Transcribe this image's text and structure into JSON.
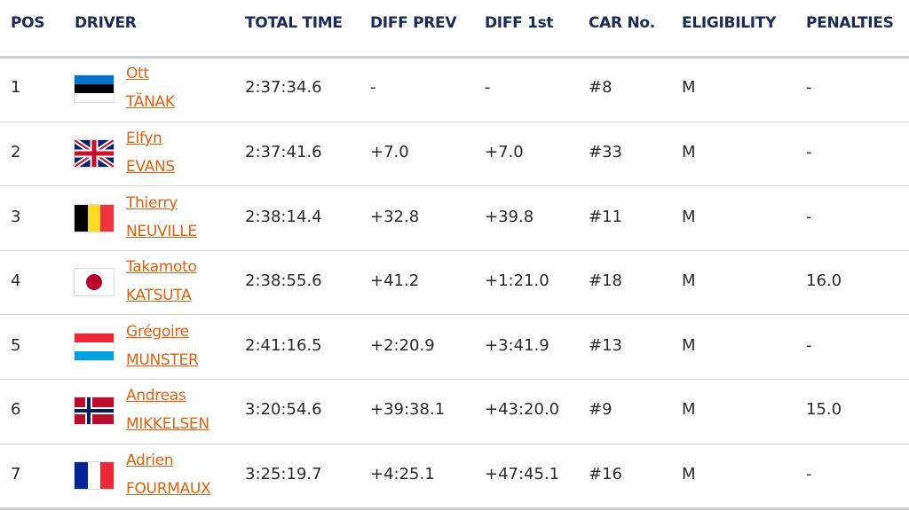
{
  "table": {
    "header": [
      "POS",
      "DRIVER",
      "TOTAL TIME",
      "DIFF PREV",
      "DIFF 1st",
      "CAR No.",
      "ELIGIBILITY",
      "PENALTIES"
    ],
    "rows": [
      {
        "pos": 1,
        "first_name": "Ott",
        "last_name": "TÄNAK",
        "total_time": "2:37:34.6",
        "diff_prev": "-",
        "diff_first": "-",
        "car": "#8",
        "eligibility": "M",
        "penalties": "-"
      },
      {
        "pos": 2,
        "first_name": "Elfyn",
        "last_name": "EVANS",
        "total_time": "2:37:41.6",
        "diff_prev": "+7.0",
        "diff_first": "+7.0",
        "car": "#33",
        "eligibility": "M",
        "penalties": "-"
      },
      {
        "pos": 3,
        "first_name": "Thierry",
        "last_name": "NEUVILLE",
        "total_time": "2:38:14.4",
        "diff_prev": "+32.8",
        "diff_first": "+39.8",
        "car": "#11",
        "eligibility": "M",
        "penalties": "-"
      },
      {
        "pos": 4,
        "first_name": "Takamoto",
        "last_name": "KATSUTA",
        "total_time": "2:38:55.6",
        "diff_prev": "+41.2",
        "diff_first": "+1:21.0",
        "car": "#18",
        "eligibility": "M",
        "penalties": "16.0"
      },
      {
        "pos": 5,
        "first_name": "Grégoire",
        "last_name": "MUNSTER",
        "total_time": "2:41:16.5",
        "diff_prev": "+2:20.9",
        "diff_first": "+3:41.9",
        "car": "#13",
        "eligibility": "M",
        "penalties": "-"
      },
      {
        "pos": 6,
        "first_name": "Andreas",
        "last_name": "MIKKELSEN",
        "total_time": "3:20:54.6",
        "diff_prev": "+39:38.1",
        "diff_first": "+43:20.0",
        "car": "#9",
        "eligibility": "M",
        "penalties": "15.0"
      },
      {
        "pos": 7,
        "first_name": "Adrien",
        "last_name": "FOURMAUX",
        "total_time": "3:25:19.7",
        "diff_prev": "+4:25.1",
        "diff_first": "+47:45.1",
        "car": "#16",
        "eligibility": "M",
        "penalties": "-"
      }
    ]
  }
}
